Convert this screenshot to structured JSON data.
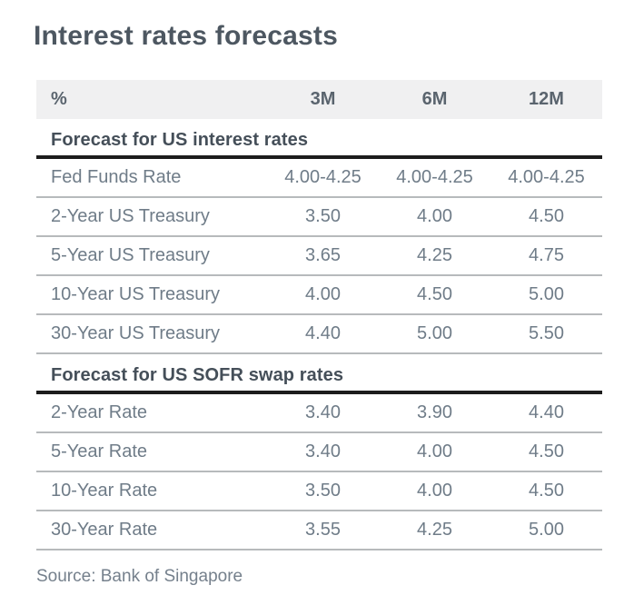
{
  "title": "Interest rates forecasts",
  "table": {
    "unit_label": "%",
    "columns": [
      "3M",
      "6M",
      "12M"
    ],
    "sections": [
      {
        "header": "Forecast for US interest rates",
        "rows": [
          {
            "label": "Fed Funds Rate",
            "values": [
              "4.00-4.25",
              "4.00-4.25",
              "4.00-4.25"
            ]
          },
          {
            "label": "2-Year US Treasury",
            "values": [
              "3.50",
              "4.00",
              "4.50"
            ]
          },
          {
            "label": "5-Year US Treasury",
            "values": [
              "3.65",
              "4.25",
              "4.75"
            ]
          },
          {
            "label": "10-Year US Treasury",
            "values": [
              "4.00",
              "4.50",
              "5.00"
            ]
          },
          {
            "label": "30-Year US Treasury",
            "values": [
              "4.40",
              "5.00",
              "5.50"
            ]
          }
        ]
      },
      {
        "header": "Forecast for US SOFR swap rates",
        "rows": [
          {
            "label": "2-Year Rate",
            "values": [
              "3.40",
              "3.90",
              "4.40"
            ]
          },
          {
            "label": "5-Year Rate",
            "values": [
              "3.40",
              "4.00",
              "4.50"
            ]
          },
          {
            "label": "10-Year Rate",
            "values": [
              "3.50",
              "4.00",
              "4.50"
            ]
          },
          {
            "label": "30-Year Rate",
            "values": [
              "3.55",
              "4.25",
              "5.00"
            ]
          }
        ]
      }
    ]
  },
  "source": "Source: Bank of Singapore",
  "colors": {
    "title_text": "#4d5761",
    "header_band_bg": "#f0f0f1",
    "header_text": "#5a646e",
    "section_header_text": "#454f59",
    "body_text": "#6f7c88",
    "thin_rule": "#b7babc",
    "thick_rule": "#1c1c1c",
    "background": "#ffffff"
  }
}
